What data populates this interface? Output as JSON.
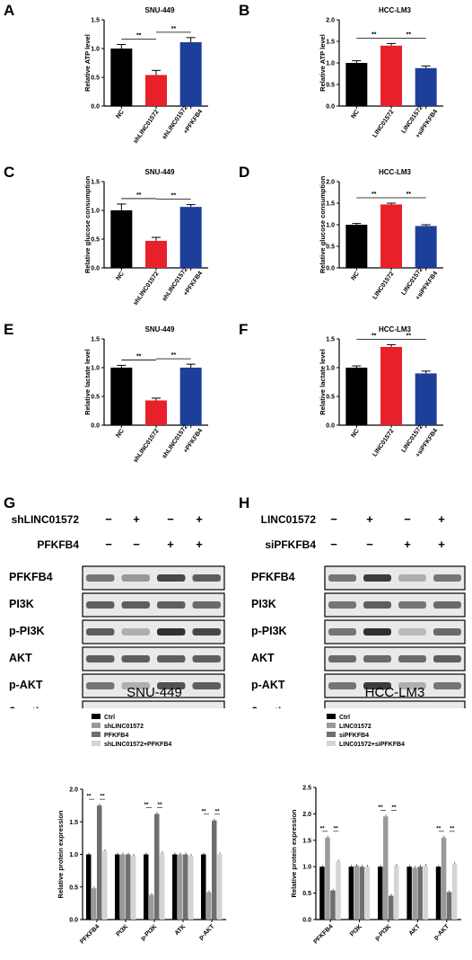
{
  "panels": [
    {
      "letter": "A",
      "title": "SNU-449",
      "ylabel": "Relative ATP level",
      "ylim": [
        0,
        1.5
      ],
      "yticks": [
        "0.0",
        "0.5",
        "1.0",
        "1.5"
      ],
      "categories": [
        "NC",
        "shLINC01572",
        "shLINC01572\n+PFKFB4"
      ],
      "values": [
        1.0,
        0.54,
        1.11
      ],
      "errors": [
        0.07,
        0.08,
        0.08
      ],
      "colors": [
        "#000000",
        "#e8202a",
        "#1c3f9a"
      ],
      "sig": [
        [
          "**",
          0,
          1
        ],
        [
          "**",
          1,
          2
        ]
      ]
    },
    {
      "letter": "B",
      "title": "HCC-LM3",
      "ylabel": "Relative ATP level",
      "ylim": [
        0,
        2.0
      ],
      "yticks": [
        "0.0",
        "0.5",
        "1.0",
        "1.5",
        "2.0"
      ],
      "categories": [
        "NC",
        "LINC01572",
        "LINC01572\n+siPFKFB4"
      ],
      "values": [
        1.0,
        1.4,
        0.88
      ],
      "errors": [
        0.05,
        0.05,
        0.05
      ],
      "colors": [
        "#000000",
        "#e8202a",
        "#1c3f9a"
      ],
      "sig": [
        [
          "**",
          0,
          1
        ],
        [
          "**",
          1,
          2
        ]
      ]
    },
    {
      "letter": "C",
      "title": "SNU-449",
      "ylabel": "Relative glucose consumption",
      "ylim": [
        0,
        1.5
      ],
      "yticks": [
        "0.0",
        "0.5",
        "1.0",
        "1.5"
      ],
      "categories": [
        "NC",
        "shLINC01572",
        "shLINC01572\n+PFKFB4"
      ],
      "values": [
        1.0,
        0.47,
        1.06
      ],
      "errors": [
        0.11,
        0.06,
        0.04
      ],
      "colors": [
        "#000000",
        "#e8202a",
        "#1c3f9a"
      ],
      "sig": [
        [
          "**",
          0,
          1
        ],
        [
          "**",
          1,
          2
        ]
      ]
    },
    {
      "letter": "D",
      "title": "HCC-LM3",
      "ylabel": "Relative glucose consumption",
      "ylim": [
        0,
        2.0
      ],
      "yticks": [
        "0.0",
        "0.5",
        "1.0",
        "1.5",
        "2.0"
      ],
      "categories": [
        "NC",
        "LINC01572",
        "LINC01572\n+siPFKFB4"
      ],
      "values": [
        1.0,
        1.47,
        0.97
      ],
      "errors": [
        0.03,
        0.03,
        0.03
      ],
      "colors": [
        "#000000",
        "#e8202a",
        "#1c3f9a"
      ],
      "sig": [
        [
          "**",
          0,
          1
        ],
        [
          "**",
          1,
          2
        ]
      ]
    },
    {
      "letter": "E",
      "title": "SNU-449",
      "ylabel": "Relative lactate level",
      "ylim": [
        0,
        1.5
      ],
      "yticks": [
        "0.0",
        "0.5",
        "1.0",
        "1.5"
      ],
      "categories": [
        "NC",
        "shLINC01572",
        "shLINC01572\n+PFKFB4"
      ],
      "values": [
        1.0,
        0.43,
        1.0
      ],
      "errors": [
        0.04,
        0.04,
        0.06
      ],
      "colors": [
        "#000000",
        "#e8202a",
        "#1c3f9a"
      ],
      "sig": [
        [
          "**",
          0,
          1
        ],
        [
          "**",
          1,
          2
        ]
      ]
    },
    {
      "letter": "F",
      "title": "HCC-LM3",
      "ylabel": "Relative lactate level",
      "ylim": [
        0,
        1.5
      ],
      "yticks": [
        "0.0",
        "0.5",
        "1.0",
        "1.5"
      ],
      "categories": [
        "NC",
        "LINC01572",
        "LINC01572\n+siPFKFB4"
      ],
      "values": [
        1.0,
        1.36,
        0.9
      ],
      "errors": [
        0.03,
        0.04,
        0.04
      ],
      "colors": [
        "#000000",
        "#e8202a",
        "#1c3f9a"
      ],
      "sig": [
        [
          "**",
          0,
          1
        ],
        [
          "**",
          1,
          2
        ]
      ]
    }
  ],
  "blots": [
    {
      "letter": "G",
      "cell": "SNU-449",
      "cond1": "shLINC01572",
      "cond2": "PFKFB4",
      "row1": [
        "−",
        "+",
        "−",
        "+"
      ],
      "row2": [
        "−",
        "−",
        "+",
        "+"
      ],
      "proteins": [
        "PFKFB4",
        "PI3K",
        "p-PI3K",
        "AKT",
        "p-AKT",
        "β-actin"
      ]
    },
    {
      "letter": "H",
      "cell": "HCC-LM3",
      "cond1": "LINC01572",
      "cond2": "siPFKFB4",
      "row1": [
        "−",
        "+",
        "−",
        "+"
      ],
      "row2": [
        "−",
        "−",
        "+",
        "+"
      ],
      "proteins": [
        "PFKFB4",
        "PI3K",
        "p-PI3K",
        "AKT",
        "p-AKT",
        "β-actin"
      ]
    }
  ],
  "chart_data": [
    {
      "type": "bar",
      "title": "SNU-449",
      "ylabel": "Relative ATP level",
      "categories": [
        "NC",
        "shLINC01572",
        "shLINC01572 +PFKFB4"
      ],
      "values": [
        1.0,
        0.54,
        1.11
      ],
      "ylim": [
        0,
        1.5
      ]
    },
    {
      "type": "bar",
      "title": "HCC-LM3",
      "ylabel": "Relative ATP level",
      "categories": [
        "NC",
        "LINC01572",
        "LINC01572 +siPFKFB4"
      ],
      "values": [
        1.0,
        1.4,
        0.88
      ],
      "ylim": [
        0,
        2.0
      ]
    },
    {
      "type": "bar",
      "title": "SNU-449",
      "ylabel": "Relative glucose consumption",
      "categories": [
        "NC",
        "shLINC01572",
        "shLINC01572 +PFKFB4"
      ],
      "values": [
        1.0,
        0.47,
        1.06
      ],
      "ylim": [
        0,
        1.5
      ]
    },
    {
      "type": "bar",
      "title": "HCC-LM3",
      "ylabel": "Relative glucose consumption",
      "categories": [
        "NC",
        "LINC01572",
        "LINC01572 +siPFKFB4"
      ],
      "values": [
        1.0,
        1.47,
        0.97
      ],
      "ylim": [
        0,
        2.0
      ]
    },
    {
      "type": "bar",
      "title": "SNU-449",
      "ylabel": "Relative lactate level",
      "categories": [
        "NC",
        "shLINC01572",
        "shLINC01572 +PFKFB4"
      ],
      "values": [
        1.0,
        0.43,
        1.0
      ],
      "ylim": [
        0,
        1.5
      ]
    },
    {
      "type": "bar",
      "title": "HCC-LM3",
      "ylabel": "Relative lactate level",
      "categories": [
        "NC",
        "LINC01572",
        "LINC01572 +siPFKFB4"
      ],
      "values": [
        1.0,
        1.36,
        0.9
      ],
      "ylim": [
        0,
        1.5
      ]
    },
    {
      "type": "bar",
      "ylabel": "Relative protein expression",
      "ylim": [
        0,
        2.0
      ],
      "yticks": [
        "0.0",
        "0.5",
        "1.0",
        "1.5",
        "2.0"
      ],
      "categories": [
        "PFKFB4",
        "PI3K",
        "p-PI3K",
        "ATK",
        "p-AKT"
      ],
      "legend": [
        "Ctrl",
        "shLINC01572",
        "PFKFB4",
        "shLINC01572+PFKFB4"
      ],
      "colors": [
        "#000000",
        "#9a9a9a",
        "#6e6e6e",
        "#d4d4d4"
      ],
      "series": [
        {
          "name": "Ctrl",
          "values": [
            1.0,
            1.0,
            1.0,
            1.0,
            1.0
          ]
        },
        {
          "name": "shLINC01572",
          "values": [
            0.48,
            1.0,
            0.38,
            1.0,
            0.42
          ]
        },
        {
          "name": "PFKFB4",
          "values": [
            1.75,
            1.0,
            1.62,
            1.0,
            1.52
          ]
        },
        {
          "name": "shLINC01572+PFKFB4",
          "values": [
            1.05,
            0.98,
            1.02,
            0.98,
            1.0
          ]
        }
      ]
    },
    {
      "type": "bar",
      "ylabel": "Relative protein expression",
      "ylim": [
        0,
        2.5
      ],
      "yticks": [
        "0.0",
        "0.5",
        "1.0",
        "1.5",
        "2.0",
        "2.5"
      ],
      "categories": [
        "PFKFB4",
        "PI3K",
        "p-PI3K",
        "AKT",
        "p-AKT"
      ],
      "legend": [
        "Ctrl",
        "LINC01572",
        "siPFKFB4",
        "LINC01572+siPFKFB4"
      ],
      "colors": [
        "#000000",
        "#9a9a9a",
        "#6e6e6e",
        "#d4d4d4"
      ],
      "series": [
        {
          "name": "Ctrl",
          "values": [
            1.0,
            1.0,
            1.0,
            1.0,
            1.0
          ]
        },
        {
          "name": "LINC01572",
          "values": [
            1.55,
            1.02,
            1.95,
            0.98,
            1.55
          ]
        },
        {
          "name": "siPFKFB4",
          "values": [
            0.55,
            1.0,
            0.45,
            1.0,
            0.52
          ]
        },
        {
          "name": "LINC01572+siPFKFB4",
          "values": [
            1.1,
            1.0,
            1.02,
            1.02,
            1.05
          ]
        }
      ]
    }
  ]
}
